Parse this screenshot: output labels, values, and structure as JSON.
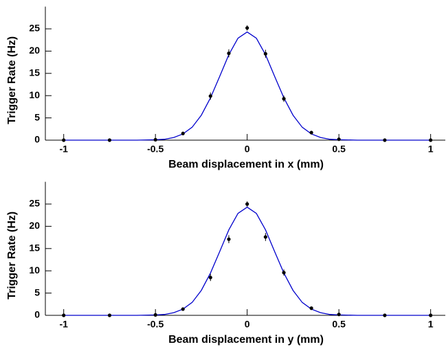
{
  "chart_data": [
    {
      "type": "scatter",
      "xlabel": "Beam displacement in x (mm)",
      "ylabel": "Trigger Rate (Hz)",
      "x": [
        -1,
        -0.75,
        -0.5,
        -0.35,
        -0.2,
        -0.1,
        0,
        0.1,
        0.2,
        0.35,
        0.5,
        0.75,
        1
      ],
      "values": [
        0,
        0,
        0.1,
        1.5,
        9.9,
        19.5,
        25.2,
        19.4,
        9.3,
        1.7,
        0.2,
        0,
        0
      ],
      "errors": [
        0.3,
        0.3,
        0.3,
        0.4,
        0.8,
        0.9,
        0.6,
        0.9,
        0.7,
        0.4,
        0.3,
        0.3,
        0.3
      ],
      "color": "#000000",
      "fit": {
        "color": "#0000cc",
        "x": [
          -1,
          -0.6,
          -0.5,
          -0.45,
          -0.4,
          -0.35,
          -0.3,
          -0.25,
          -0.2,
          -0.15,
          -0.1,
          -0.05,
          0,
          0.05,
          0.1,
          0.15,
          0.2,
          0.25,
          0.3,
          0.35,
          0.4,
          0.45,
          0.5,
          0.6,
          1
        ],
        "values": [
          0,
          0,
          0.1,
          0.2,
          0.6,
          1.4,
          2.9,
          5.6,
          9.5,
          14.3,
          19.2,
          22.9,
          24.3,
          22.9,
          19.2,
          14.3,
          9.5,
          5.6,
          2.9,
          1.4,
          0.6,
          0.2,
          0.1,
          0,
          0
        ]
      },
      "xlim": [
        -1.1,
        1.08
      ],
      "ylim": [
        0,
        30
      ],
      "xticks": [
        -1,
        -0.5,
        0,
        0.5,
        1
      ],
      "yticks": [
        0,
        5,
        10,
        15,
        20,
        25
      ]
    },
    {
      "type": "scatter",
      "xlabel": "Beam displacement in y (mm)",
      "ylabel": "Trigger Rate (Hz)",
      "x": [
        -1,
        -0.75,
        -0.5,
        -0.35,
        -0.2,
        -0.1,
        0,
        0.1,
        0.2,
        0.35,
        0.5,
        0.75,
        1
      ],
      "values": [
        0,
        0,
        0.1,
        1.4,
        8.5,
        17.1,
        25,
        17.6,
        9.6,
        1.6,
        0.2,
        0,
        0
      ],
      "errors": [
        0.3,
        0.3,
        0.3,
        0.4,
        0.8,
        0.9,
        0.6,
        0.9,
        0.7,
        0.4,
        0.3,
        0.3,
        0.3
      ],
      "color": "#000000",
      "fit": {
        "color": "#0000cc",
        "x": [
          -1,
          -0.6,
          -0.5,
          -0.45,
          -0.4,
          -0.35,
          -0.3,
          -0.25,
          -0.2,
          -0.15,
          -0.1,
          -0.05,
          0,
          0.05,
          0.1,
          0.15,
          0.2,
          0.25,
          0.3,
          0.35,
          0.4,
          0.45,
          0.5,
          0.6,
          1
        ],
        "values": [
          0,
          0,
          0.1,
          0.2,
          0.6,
          1.4,
          2.9,
          5.6,
          9.5,
          14.3,
          19.2,
          22.9,
          24.3,
          22.9,
          19.2,
          14.3,
          9.5,
          5.6,
          2.9,
          1.4,
          0.6,
          0.2,
          0.1,
          0,
          0
        ]
      },
      "xlim": [
        -1.1,
        1.08
      ],
      "ylim": [
        0,
        30
      ],
      "xticks": [
        -1,
        -0.5,
        0,
        0.5,
        1
      ],
      "yticks": [
        0,
        5,
        10,
        15,
        20,
        25
      ]
    }
  ]
}
